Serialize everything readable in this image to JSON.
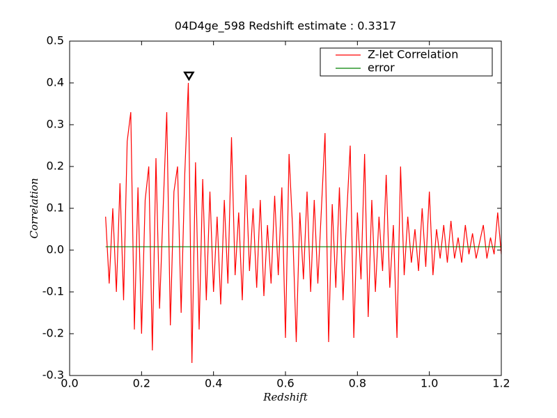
{
  "chart_data": {
    "type": "line",
    "title": "04D4ge_598 Redshift estimate : 0.3317",
    "x_label": "Redshift",
    "y_label": "Correlation",
    "xlim": [
      0,
      1.2
    ],
    "ylim": [
      -0.3,
      0.5
    ],
    "xticks": [
      {
        "value": 0,
        "label": "0.0"
      },
      {
        "value": 0.2,
        "label": "0.2"
      },
      {
        "value": 0.4,
        "label": "0.4"
      },
      {
        "value": 0.6,
        "label": "0.6"
      },
      {
        "value": 0.8,
        "label": "0.8"
      },
      {
        "value": 1,
        "label": "1.0"
      },
      {
        "value": 1.2,
        "label": "1.2"
      }
    ],
    "yticks": [
      {
        "value": -0.3,
        "label": "-0.3"
      },
      {
        "value": -0.2,
        "label": "-0.2"
      },
      {
        "value": -0.1,
        "label": "-0.1"
      },
      {
        "value": 0,
        "label": "0.0"
      },
      {
        "value": 0.1,
        "label": "0.1"
      },
      {
        "value": 0.2,
        "label": "0.2"
      },
      {
        "value": 0.3,
        "label": "0.3"
      },
      {
        "value": 0.4,
        "label": "0.4"
      },
      {
        "value": 0.5,
        "label": "0.5"
      }
    ],
    "legend": "upper right",
    "series": [
      {
        "name": "Z-let Correlation",
        "color": "#ff0000",
        "x": [
          0.1,
          0.11,
          0.12,
          0.13,
          0.14,
          0.15,
          0.16,
          0.17,
          0.18,
          0.19,
          0.2,
          0.21,
          0.22,
          0.23,
          0.24,
          0.25,
          0.26,
          0.27,
          0.28,
          0.29,
          0.3,
          0.31,
          0.32,
          0.33,
          0.34,
          0.35,
          0.36,
          0.37,
          0.38,
          0.39,
          0.4,
          0.41,
          0.42,
          0.43,
          0.44,
          0.45,
          0.46,
          0.47,
          0.48,
          0.49,
          0.5,
          0.51,
          0.52,
          0.53,
          0.54,
          0.55,
          0.56,
          0.57,
          0.58,
          0.59,
          0.6,
          0.61,
          0.62,
          0.63,
          0.64,
          0.65,
          0.66,
          0.67,
          0.68,
          0.69,
          0.7,
          0.71,
          0.72,
          0.73,
          0.74,
          0.75,
          0.76,
          0.77,
          0.78,
          0.79,
          0.8,
          0.81,
          0.82,
          0.83,
          0.84,
          0.85,
          0.86,
          0.87,
          0.88,
          0.89,
          0.9,
          0.91,
          0.92,
          0.93,
          0.94,
          0.95,
          0.96,
          0.97,
          0.98,
          0.99,
          1.0,
          1.01,
          1.02,
          1.03,
          1.04,
          1.05,
          1.06,
          1.07,
          1.08,
          1.09,
          1.1,
          1.11,
          1.12,
          1.13,
          1.14,
          1.15,
          1.16,
          1.17,
          1.18,
          1.19,
          1.2
        ],
        "values": [
          0.08,
          -0.08,
          0.1,
          -0.1,
          0.16,
          -0.12,
          0.26,
          0.33,
          -0.19,
          0.15,
          -0.2,
          0.12,
          0.2,
          -0.24,
          0.22,
          -0.14,
          0.1,
          0.33,
          -0.18,
          0.14,
          0.2,
          -0.15,
          0.18,
          0.4,
          -0.27,
          0.21,
          -0.19,
          0.17,
          -0.12,
          0.14,
          -0.1,
          0.08,
          -0.13,
          0.12,
          -0.08,
          0.27,
          -0.06,
          0.09,
          -0.12,
          0.18,
          -0.05,
          0.1,
          -0.09,
          0.12,
          -0.11,
          0.06,
          -0.08,
          0.13,
          -0.06,
          0.15,
          -0.21,
          0.23,
          0.05,
          -0.22,
          0.09,
          -0.07,
          0.14,
          -0.1,
          0.12,
          -0.08,
          0.1,
          0.28,
          -0.22,
          0.11,
          -0.09,
          0.15,
          -0.12,
          0.08,
          0.25,
          -0.21,
          0.09,
          -0.07,
          0.23,
          -0.16,
          0.12,
          -0.1,
          0.08,
          -0.05,
          0.18,
          -0.09,
          0.06,
          -0.21,
          0.2,
          -0.06,
          0.08,
          -0.03,
          0.05,
          -0.05,
          0.1,
          -0.04,
          0.14,
          -0.06,
          0.05,
          -0.02,
          0.06,
          -0.03,
          0.07,
          -0.02,
          0.03,
          -0.03,
          0.06,
          -0.01,
          0.04,
          -0.02,
          0.02,
          0.06,
          -0.02,
          0.03,
          -0.01,
          0.09,
          -0.01
        ]
      },
      {
        "name": "error",
        "color": "#008000",
        "x": [
          0.1,
          1.2
        ],
        "values": [
          0.008,
          0.008
        ]
      }
    ],
    "peak": {
      "x": 0.3317,
      "y": 0.405
    }
  }
}
